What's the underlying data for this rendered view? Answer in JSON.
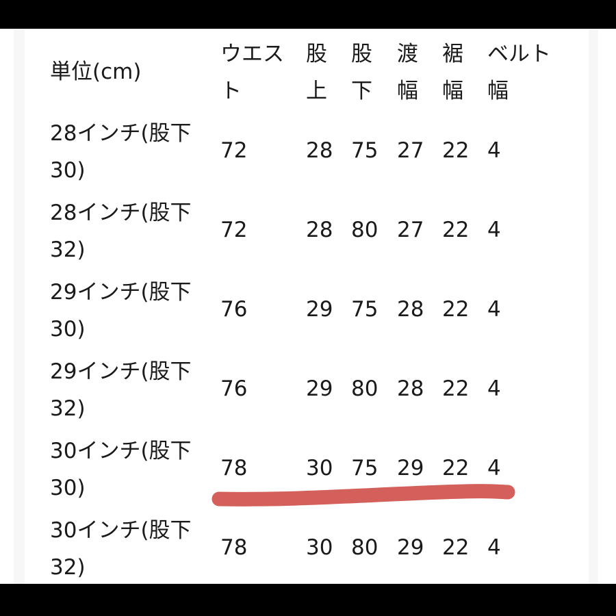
{
  "table": {
    "headers": [
      "単位(cm)",
      "ウエスト",
      "股上",
      "股下",
      "渡幅",
      "裾幅",
      "ベルト幅"
    ],
    "rows": [
      [
        "28インチ(股下30)",
        "72",
        "28",
        "75",
        "27",
        "22",
        "4"
      ],
      [
        "28インチ(股下32)",
        "72",
        "28",
        "80",
        "27",
        "22",
        "4"
      ],
      [
        "29インチ(股下30)",
        "76",
        "29",
        "75",
        "28",
        "22",
        "4"
      ],
      [
        "29インチ(股下32)",
        "76",
        "29",
        "80",
        "28",
        "22",
        "4"
      ],
      [
        "30インチ(股下30)",
        "78",
        "30",
        "75",
        "29",
        "22",
        "4"
      ],
      [
        "30インチ(股下32)",
        "78",
        "30",
        "80",
        "29",
        "22",
        "4"
      ]
    ]
  },
  "annotation": {
    "highlight_color": "#d4605b",
    "highlighted_row": "30インチ(股下30)"
  }
}
